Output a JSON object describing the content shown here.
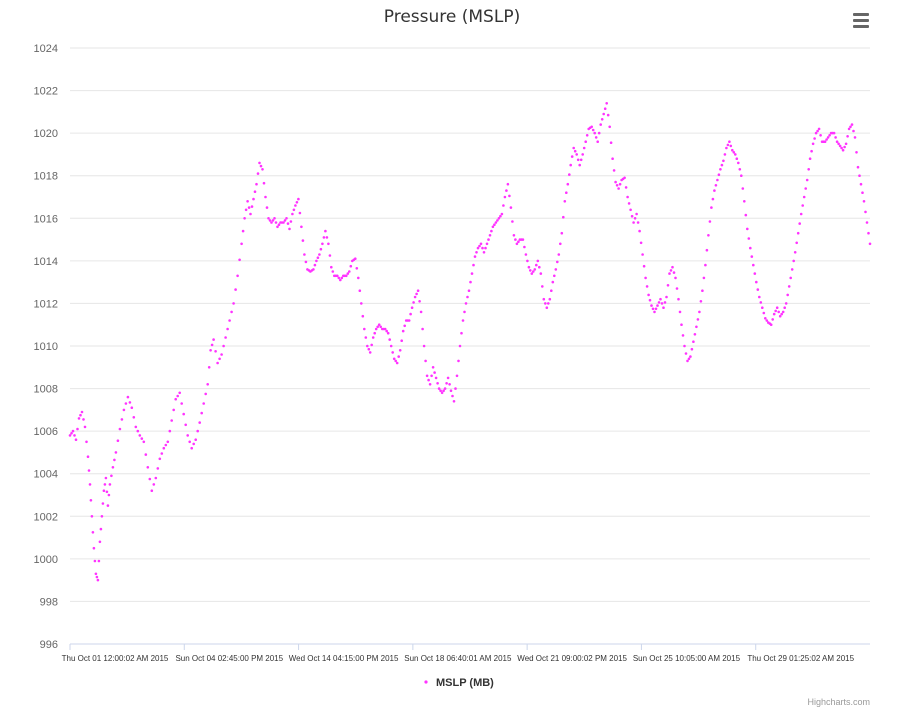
{
  "chart": {
    "title": "Pressure (MSLP)",
    "credits": "Highcharts.com",
    "menu_icon": "hamburger-menu-icon",
    "colors": {
      "series": "#ff33ff",
      "grid": "#e6e6e6",
      "axis": "#ccd6eb"
    }
  },
  "chart_data": {
    "type": "scatter",
    "title": "Pressure (MSLP)",
    "xlabel": "",
    "ylabel": "",
    "ylim": [
      996,
      1024
    ],
    "yticks": [
      996,
      998,
      1000,
      1002,
      1004,
      1006,
      1008,
      1010,
      1012,
      1014,
      1016,
      1018,
      1020,
      1022,
      1024
    ],
    "x_tick_labels": [
      "Thu Oct 01 12:00:02 AM 2015",
      "Sun Oct 04 02:45:00 PM 2015",
      "Wed Oct 14 04:15:00 PM 2015",
      "Sun Oct 18 06:40:01 AM 2015",
      "Wed Oct 21 09:00:02 PM 2015",
      "Sun Oct 25 10:05:00 AM 2015",
      "Thu Oct 29 01:25:02 AM 2015"
    ],
    "grid": true,
    "legend_position": "bottom-center",
    "series": [
      {
        "name": "MSLP (MB)",
        "color": "#ff33ff",
        "marker": "circle",
        "approximate_path": [
          [
            0,
            1005.8
          ],
          [
            3,
            1006
          ],
          [
            6,
            1005.6
          ],
          [
            9,
            1006.6
          ],
          [
            12,
            1006.9
          ],
          [
            15,
            1006.2
          ],
          [
            18,
            1004.8
          ],
          [
            20,
            1003.5
          ],
          [
            22,
            1002
          ],
          [
            24,
            1000.5
          ],
          [
            26,
            999.3
          ],
          [
            28,
            999
          ],
          [
            30,
            1000.8
          ],
          [
            32,
            1002
          ],
          [
            34,
            1003.2
          ],
          [
            36,
            1003.8
          ],
          [
            38,
            1002.5
          ],
          [
            40,
            1003.5
          ],
          [
            43,
            1004.3
          ],
          [
            46,
            1005
          ],
          [
            50,
            1006.1
          ],
          [
            54,
            1007
          ],
          [
            58,
            1007.6
          ],
          [
            62,
            1007.1
          ],
          [
            66,
            1006.2
          ],
          [
            70,
            1005.8
          ],
          [
            74,
            1005.5
          ],
          [
            78,
            1004.3
          ],
          [
            82,
            1003.2
          ],
          [
            86,
            1003.8
          ],
          [
            90,
            1004.7
          ],
          [
            94,
            1005.2
          ],
          [
            98,
            1005.5
          ],
          [
            102,
            1006.5
          ],
          [
            106,
            1007.5
          ],
          [
            110,
            1007.8
          ],
          [
            114,
            1006.8
          ],
          [
            118,
            1005.8
          ],
          [
            122,
            1005.2
          ],
          [
            126,
            1005.6
          ],
          [
            130,
            1006.4
          ],
          [
            134,
            1007.3
          ],
          [
            138,
            1008.2
          ],
          [
            141,
            1009.8
          ],
          [
            144,
            1010.3
          ],
          [
            148,
            1009.2
          ],
          [
            152,
            1009.6
          ],
          [
            156,
            1010.4
          ],
          [
            160,
            1011.2
          ],
          [
            164,
            1012
          ],
          [
            168,
            1013.3
          ],
          [
            172,
            1014.8
          ],
          [
            175,
            1016
          ],
          [
            178,
            1016.8
          ],
          [
            181,
            1016.2
          ],
          [
            184,
            1016.9
          ],
          [
            187,
            1017.6
          ],
          [
            190,
            1018.6
          ],
          [
            193,
            1018.3
          ],
          [
            196,
            1017
          ],
          [
            199,
            1016
          ],
          [
            202,
            1015.8
          ],
          [
            205,
            1016
          ],
          [
            208,
            1015.6
          ],
          [
            211,
            1015.8
          ],
          [
            214,
            1015.8
          ],
          [
            217,
            1016
          ],
          [
            220,
            1015.5
          ],
          [
            223,
            1016.2
          ],
          [
            226,
            1016.6
          ],
          [
            229,
            1016.9
          ],
          [
            232,
            1015.6
          ],
          [
            235,
            1014.3
          ],
          [
            238,
            1013.6
          ],
          [
            241,
            1013.5
          ],
          [
            244,
            1013.6
          ],
          [
            247,
            1014
          ],
          [
            250,
            1014.3
          ],
          [
            253,
            1014.8
          ],
          [
            256,
            1015.4
          ],
          [
            259,
            1014.8
          ],
          [
            262,
            1013.7
          ],
          [
            265,
            1013.3
          ],
          [
            268,
            1013.3
          ],
          [
            271,
            1013.1
          ],
          [
            274,
            1013.3
          ],
          [
            277,
            1013.3
          ],
          [
            280,
            1013.5
          ],
          [
            283,
            1014
          ],
          [
            286,
            1014.1
          ],
          [
            289,
            1013.2
          ],
          [
            292,
            1012
          ],
          [
            295,
            1010.8
          ],
          [
            298,
            1010
          ],
          [
            301,
            1009.7
          ],
          [
            304,
            1010.4
          ],
          [
            307,
            1010.8
          ],
          [
            310,
            1011
          ],
          [
            313,
            1010.8
          ],
          [
            316,
            1010.8
          ],
          [
            319,
            1010.6
          ],
          [
            322,
            1010
          ],
          [
            325,
            1009.4
          ],
          [
            328,
            1009.2
          ],
          [
            331,
            1009.8
          ],
          [
            334,
            1010.7
          ],
          [
            337,
            1011.2
          ],
          [
            340,
            1011.2
          ],
          [
            343,
            1011.8
          ],
          [
            346,
            1012.3
          ],
          [
            349,
            1012.6
          ],
          [
            352,
            1011.6
          ],
          [
            355,
            1010
          ],
          [
            358,
            1008.6
          ],
          [
            361,
            1008.2
          ],
          [
            364,
            1009
          ],
          [
            367,
            1008.5
          ],
          [
            370,
            1008
          ],
          [
            373,
            1007.8
          ],
          [
            376,
            1008
          ],
          [
            379,
            1008.5
          ],
          [
            382,
            1007.9
          ],
          [
            385,
            1007.4
          ],
          [
            388,
            1008.6
          ],
          [
            391,
            1010
          ],
          [
            394,
            1011.2
          ],
          [
            397,
            1012
          ],
          [
            400,
            1012.6
          ],
          [
            403,
            1013.4
          ],
          [
            406,
            1014.2
          ],
          [
            409,
            1014.6
          ],
          [
            412,
            1014.8
          ],
          [
            415,
            1014.4
          ],
          [
            418,
            1014.8
          ],
          [
            421,
            1015.2
          ],
          [
            424,
            1015.6
          ],
          [
            427,
            1015.8
          ],
          [
            430,
            1016
          ],
          [
            433,
            1016.2
          ],
          [
            436,
            1017
          ],
          [
            439,
            1017.6
          ],
          [
            442,
            1016.5
          ],
          [
            445,
            1015.2
          ],
          [
            448,
            1014.8
          ],
          [
            451,
            1015
          ],
          [
            454,
            1015
          ],
          [
            457,
            1014.3
          ],
          [
            460,
            1013.7
          ],
          [
            463,
            1013.4
          ],
          [
            466,
            1013.6
          ],
          [
            469,
            1014
          ],
          [
            472,
            1013.4
          ],
          [
            475,
            1012.2
          ],
          [
            478,
            1011.8
          ],
          [
            481,
            1012.2
          ],
          [
            484,
            1013
          ],
          [
            487,
            1013.6
          ],
          [
            490,
            1014.3
          ],
          [
            493,
            1015.3
          ],
          [
            496,
            1016.8
          ],
          [
            499,
            1017.6
          ],
          [
            502,
            1018.5
          ],
          [
            505,
            1019.3
          ],
          [
            508,
            1019
          ],
          [
            511,
            1018.5
          ],
          [
            514,
            1019
          ],
          [
            517,
            1019.6
          ],
          [
            520,
            1020.2
          ],
          [
            523,
            1020.3
          ],
          [
            526,
            1020
          ],
          [
            529,
            1019.6
          ],
          [
            532,
            1020.4
          ],
          [
            535,
            1020.9
          ],
          [
            538,
            1021.4
          ],
          [
            541,
            1020.3
          ],
          [
            544,
            1018.8
          ],
          [
            547,
            1017.7
          ],
          [
            550,
            1017.4
          ],
          [
            553,
            1017.8
          ],
          [
            556,
            1017.9
          ],
          [
            559,
            1017
          ],
          [
            562,
            1016.4
          ],
          [
            565,
            1015.8
          ],
          [
            568,
            1016.2
          ],
          [
            571,
            1015.4
          ],
          [
            574,
            1014.3
          ],
          [
            577,
            1013.2
          ],
          [
            580,
            1012.4
          ],
          [
            583,
            1011.9
          ],
          [
            586,
            1011.6
          ],
          [
            589,
            1011.9
          ],
          [
            592,
            1012.2
          ],
          [
            595,
            1011.8
          ],
          [
            598,
            1012.3
          ],
          [
            601,
            1013.4
          ],
          [
            604,
            1013.7
          ],
          [
            607,
            1013.2
          ],
          [
            610,
            1012.2
          ],
          [
            613,
            1011
          ],
          [
            616,
            1010
          ],
          [
            619,
            1009.3
          ],
          [
            622,
            1009.5
          ],
          [
            625,
            1010.2
          ],
          [
            628,
            1010.9
          ],
          [
            631,
            1011.6
          ],
          [
            634,
            1012.6
          ],
          [
            637,
            1013.8
          ],
          [
            640,
            1015.2
          ],
          [
            643,
            1016.5
          ],
          [
            646,
            1017.3
          ],
          [
            649,
            1017.8
          ],
          [
            652,
            1018.3
          ],
          [
            655,
            1018.7
          ],
          [
            658,
            1019.3
          ],
          [
            661,
            1019.6
          ],
          [
            664,
            1019.2
          ],
          [
            667,
            1019
          ],
          [
            670,
            1018.6
          ],
          [
            673,
            1018
          ],
          [
            676,
            1016.8
          ],
          [
            679,
            1015.5
          ],
          [
            682,
            1014.6
          ],
          [
            685,
            1013.8
          ],
          [
            688,
            1013
          ],
          [
            691,
            1012.3
          ],
          [
            694,
            1011.8
          ],
          [
            697,
            1011.3
          ],
          [
            700,
            1011.1
          ],
          [
            703,
            1011
          ],
          [
            706,
            1011.5
          ],
          [
            709,
            1011.8
          ],
          [
            712,
            1011.4
          ],
          [
            715,
            1011.6
          ],
          [
            718,
            1012
          ],
          [
            721,
            1012.8
          ],
          [
            724,
            1013.6
          ],
          [
            727,
            1014.4
          ],
          [
            730,
            1015.3
          ],
          [
            733,
            1016.2
          ],
          [
            736,
            1017
          ],
          [
            739,
            1017.8
          ],
          [
            742,
            1018.8
          ],
          [
            745,
            1019.5
          ],
          [
            748,
            1020
          ],
          [
            751,
            1020.2
          ],
          [
            754,
            1019.6
          ],
          [
            757,
            1019.6
          ],
          [
            760,
            1019.8
          ],
          [
            763,
            1020
          ],
          [
            766,
            1020
          ],
          [
            769,
            1019.6
          ],
          [
            772,
            1019.4
          ],
          [
            775,
            1019.2
          ],
          [
            778,
            1019.5
          ],
          [
            781,
            1020.2
          ],
          [
            784,
            1020.4
          ],
          [
            787,
            1019.8
          ],
          [
            790,
            1018.4
          ],
          [
            793,
            1017.6
          ],
          [
            796,
            1016.8
          ],
          [
            799,
            1015.8
          ],
          [
            802,
            1014.8
          ]
        ]
      }
    ]
  }
}
